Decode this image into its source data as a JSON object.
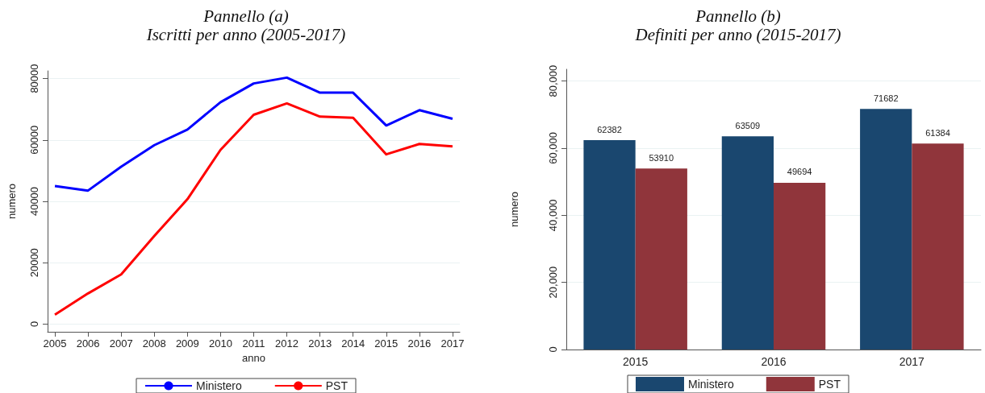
{
  "chart_data": [
    {
      "type": "line",
      "title": "Pannello (a)",
      "subtitle": "Iscritti per anno (2005-2017)",
      "xlabel": "anno",
      "ylabel": "numero",
      "x": [
        2005,
        2006,
        2007,
        2008,
        2009,
        2010,
        2011,
        2012,
        2013,
        2014,
        2015,
        2016,
        2017
      ],
      "series": [
        {
          "name": "Ministero",
          "color": "#0000ff",
          "values": [
            45000,
            43500,
            51300,
            58300,
            63400,
            72300,
            78400,
            80300,
            75400,
            75400,
            64700,
            69700,
            66900
          ]
        },
        {
          "name": "PST",
          "color": "#ff0000",
          "values": [
            3100,
            10000,
            16200,
            28700,
            40700,
            56800,
            68200,
            71900,
            67600,
            67200,
            55300,
            58700,
            57900
          ]
        }
      ],
      "xlim": [
        2004.78,
        2017.22
      ],
      "xticks": [
        2005,
        2006,
        2007,
        2008,
        2009,
        2010,
        2011,
        2012,
        2013,
        2014,
        2015,
        2016,
        2017
      ],
      "ylim": [
        -2500,
        82500
      ],
      "yticks": [
        0,
        20000,
        40000,
        60000,
        80000
      ],
      "grid": "y",
      "legend": "bottom",
      "marker": "none",
      "line_style": "solid"
    },
    {
      "type": "bar",
      "title": "Pannello (b)",
      "subtitle": "Definiti per anno (2015-2017)",
      "ylabel": "numero",
      "categories": [
        "2015",
        "2016",
        "2017"
      ],
      "series": [
        {
          "name": "Ministero",
          "color": "#1a476f",
          "values": [
            62382,
            63509,
            71682
          ]
        },
        {
          "name": "PST",
          "color": "#90353b",
          "values": [
            53910,
            49694,
            61384
          ]
        }
      ],
      "ylim": [
        0,
        83500
      ],
      "yticks": [
        {
          "value": 0,
          "label": "0"
        },
        {
          "value": 20000,
          "label": "20,000"
        },
        {
          "value": 40000,
          "label": "40,000"
        },
        {
          "value": 60000,
          "label": "60,000"
        },
        {
          "value": 80000,
          "label": "80,000"
        }
      ],
      "grid": "y",
      "legend": "bottom",
      "data_labels": true
    }
  ]
}
